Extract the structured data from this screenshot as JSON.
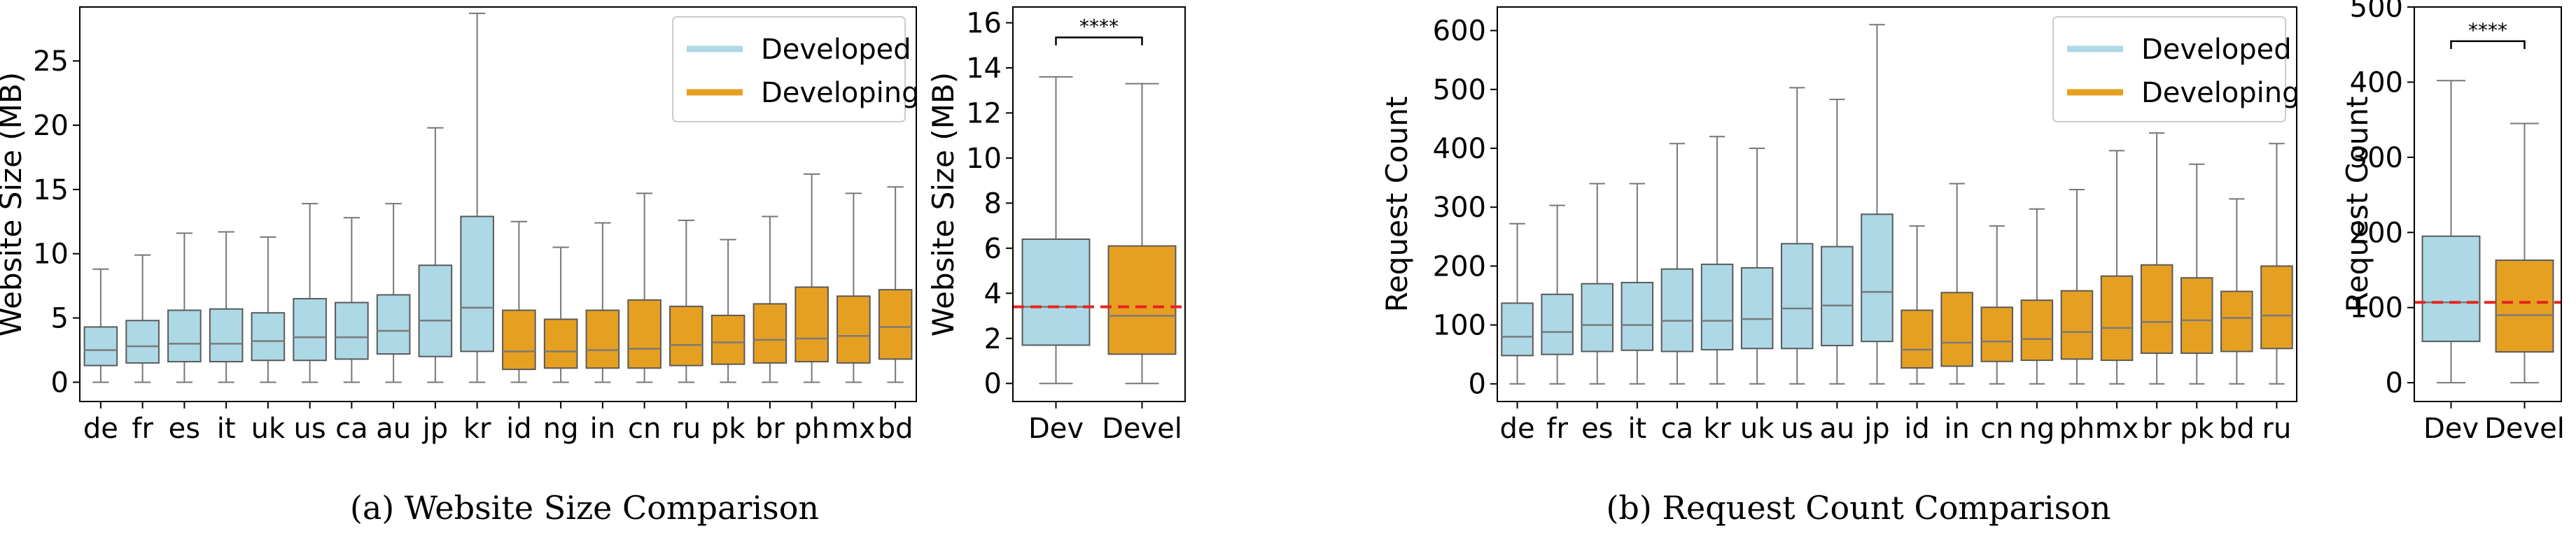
{
  "colors": {
    "developed": "#ADD8E6",
    "developing": "#E6A021",
    "median_line": "#7a7a7a",
    "whisker": "#777777",
    "ref_line": "#E8231E"
  },
  "subfigures": [
    {
      "caption": "(a)  Website Size Comparison"
    },
    {
      "caption": "(b)  Request Count Comparison"
    }
  ],
  "chart_data": [
    {
      "id": "size-country",
      "type": "box",
      "ylabel": "Website Size (MB)",
      "ylim": [
        -1.5,
        29.2
      ],
      "yticks": [
        0,
        5,
        10,
        15,
        20,
        25
      ],
      "legend": {
        "placement": "top-right",
        "entries": [
          {
            "name": "Developed",
            "group": "developed"
          },
          {
            "name": "Developing",
            "group": "developing"
          }
        ]
      },
      "boxes": [
        {
          "label": "de",
          "group": "developed",
          "min": 0,
          "q1": 1.3,
          "median": 2.5,
          "q3": 4.3,
          "max": 8.8
        },
        {
          "label": "fr",
          "group": "developed",
          "min": 0,
          "q1": 1.5,
          "median": 2.8,
          "q3": 4.8,
          "max": 9.9
        },
        {
          "label": "es",
          "group": "developed",
          "min": 0,
          "q1": 1.6,
          "median": 3.0,
          "q3": 5.6,
          "max": 11.6
        },
        {
          "label": "it",
          "group": "developed",
          "min": 0,
          "q1": 1.6,
          "median": 3.0,
          "q3": 5.7,
          "max": 11.7
        },
        {
          "label": "uk",
          "group": "developed",
          "min": 0,
          "q1": 1.7,
          "median": 3.2,
          "q3": 5.4,
          "max": 11.3
        },
        {
          "label": "us",
          "group": "developed",
          "min": 0,
          "q1": 1.7,
          "median": 3.5,
          "q3": 6.5,
          "max": 13.9
        },
        {
          "label": "ca",
          "group": "developed",
          "min": 0,
          "q1": 1.8,
          "median": 3.5,
          "q3": 6.2,
          "max": 12.8
        },
        {
          "label": "au",
          "group": "developed",
          "min": 0,
          "q1": 2.2,
          "median": 4.0,
          "q3": 6.8,
          "max": 13.9
        },
        {
          "label": "jp",
          "group": "developed",
          "min": 0,
          "q1": 2.0,
          "median": 4.8,
          "q3": 9.1,
          "max": 19.8
        },
        {
          "label": "kr",
          "group": "developed",
          "min": 0,
          "q1": 2.4,
          "median": 5.8,
          "q3": 12.9,
          "max": 28.7
        },
        {
          "label": "id",
          "group": "developing",
          "min": 0,
          "q1": 1.0,
          "median": 2.4,
          "q3": 5.6,
          "max": 12.5
        },
        {
          "label": "ng",
          "group": "developing",
          "min": 0,
          "q1": 1.1,
          "median": 2.4,
          "q3": 4.9,
          "max": 10.5
        },
        {
          "label": "in",
          "group": "developing",
          "min": 0,
          "q1": 1.1,
          "median": 2.5,
          "q3": 5.6,
          "max": 12.4
        },
        {
          "label": "cn",
          "group": "developing",
          "min": 0,
          "q1": 1.1,
          "median": 2.6,
          "q3": 6.4,
          "max": 14.7
        },
        {
          "label": "ru",
          "group": "developing",
          "min": 0,
          "q1": 1.3,
          "median": 2.9,
          "q3": 5.9,
          "max": 12.6
        },
        {
          "label": "pk",
          "group": "developing",
          "min": 0,
          "q1": 1.4,
          "median": 3.1,
          "q3": 5.2,
          "max": 11.1
        },
        {
          "label": "br",
          "group": "developing",
          "min": 0,
          "q1": 1.5,
          "median": 3.3,
          "q3": 6.1,
          "max": 12.9
        },
        {
          "label": "ph",
          "group": "developing",
          "min": 0,
          "q1": 1.6,
          "median": 3.4,
          "q3": 7.4,
          "max": 16.2
        },
        {
          "label": "mx",
          "group": "developing",
          "min": 0,
          "q1": 1.5,
          "median": 3.6,
          "q3": 6.7,
          "max": 14.7
        },
        {
          "label": "bd",
          "group": "developing",
          "min": 0,
          "q1": 1.8,
          "median": 4.3,
          "q3": 7.2,
          "max": 15.2
        }
      ]
    },
    {
      "id": "size-group",
      "type": "box",
      "ylabel": "Website Size (MB)",
      "ylim": [
        -0.8,
        16.7
      ],
      "yticks": [
        0,
        2,
        4,
        6,
        8,
        10,
        12,
        14,
        16
      ],
      "reference_line": 3.4,
      "significance": "****",
      "boxes": [
        {
          "label": "Dev",
          "group": "developed",
          "min": 0,
          "q1": 1.7,
          "median": 3.4,
          "q3": 6.4,
          "max": 13.6
        },
        {
          "label": "Devel",
          "group": "developing",
          "min": 0,
          "q1": 1.3,
          "median": 3.0,
          "q3": 6.1,
          "max": 13.3
        }
      ]
    },
    {
      "id": "requests-country",
      "type": "box",
      "ylabel": "Request Count",
      "ylim": [
        -30,
        640
      ],
      "yticks": [
        0,
        100,
        200,
        300,
        400,
        500,
        600
      ],
      "legend": {
        "placement": "top-right",
        "entries": [
          {
            "name": "Developed",
            "group": "developed"
          },
          {
            "name": "Developing",
            "group": "developing"
          }
        ]
      },
      "boxes": [
        {
          "label": "de",
          "group": "developed",
          "min": 0,
          "q1": 48,
          "median": 80,
          "q3": 137,
          "max": 272
        },
        {
          "label": "fr",
          "group": "developed",
          "min": 0,
          "q1": 50,
          "median": 88,
          "q3": 152,
          "max": 303
        },
        {
          "label": "es",
          "group": "developed",
          "min": 0,
          "q1": 55,
          "median": 100,
          "q3": 170,
          "max": 340
        },
        {
          "label": "it",
          "group": "developed",
          "min": 0,
          "q1": 57,
          "median": 100,
          "q3": 172,
          "max": 340
        },
        {
          "label": "ca",
          "group": "developed",
          "min": 0,
          "q1": 55,
          "median": 107,
          "q3": 195,
          "max": 408
        },
        {
          "label": "kr",
          "group": "developed",
          "min": 0,
          "q1": 58,
          "median": 107,
          "q3": 203,
          "max": 420
        },
        {
          "label": "uk",
          "group": "developed",
          "min": 0,
          "q1": 60,
          "median": 110,
          "q3": 197,
          "max": 400
        },
        {
          "label": "us",
          "group": "developed",
          "min": 0,
          "q1": 60,
          "median": 128,
          "q3": 238,
          "max": 503
        },
        {
          "label": "au",
          "group": "developed",
          "min": 0,
          "q1": 65,
          "median": 133,
          "q3": 233,
          "max": 483
        },
        {
          "label": "jp",
          "group": "developed",
          "min": 0,
          "q1": 72,
          "median": 156,
          "q3": 288,
          "max": 610
        },
        {
          "label": "id",
          "group": "developing",
          "min": 0,
          "q1": 27,
          "median": 58,
          "q3": 125,
          "max": 268
        },
        {
          "label": "in",
          "group": "developing",
          "min": 0,
          "q1": 30,
          "median": 70,
          "q3": 155,
          "max": 340
        },
        {
          "label": "cn",
          "group": "developing",
          "min": 0,
          "q1": 38,
          "median": 72,
          "q3": 130,
          "max": 268
        },
        {
          "label": "ng",
          "group": "developing",
          "min": 0,
          "q1": 40,
          "median": 76,
          "q3": 142,
          "max": 297
        },
        {
          "label": "ph",
          "group": "developing",
          "min": 0,
          "q1": 42,
          "median": 88,
          "q3": 158,
          "max": 330
        },
        {
          "label": "mx",
          "group": "developing",
          "min": 0,
          "q1": 40,
          "median": 95,
          "q3": 183,
          "max": 396
        },
        {
          "label": "br",
          "group": "developing",
          "min": 0,
          "q1": 52,
          "median": 105,
          "q3": 202,
          "max": 426
        },
        {
          "label": "pk",
          "group": "developing",
          "min": 0,
          "q1": 52,
          "median": 108,
          "q3": 180,
          "max": 373
        },
        {
          "label": "bd",
          "group": "developing",
          "min": 0,
          "q1": 55,
          "median": 112,
          "q3": 157,
          "max": 314
        },
        {
          "label": "ru",
          "group": "developing",
          "min": 0,
          "q1": 60,
          "median": 116,
          "q3": 200,
          "max": 408
        }
      ]
    },
    {
      "id": "requests-group",
      "type": "box",
      "ylabel": "Request Count",
      "ylim": [
        -25,
        500
      ],
      "yticks": [
        0,
        100,
        200,
        300,
        400,
        500
      ],
      "reference_line": 107,
      "significance": "****",
      "boxes": [
        {
          "label": "Dev",
          "group": "developed",
          "min": 0,
          "q1": 55,
          "median": 107,
          "q3": 195,
          "max": 402
        },
        {
          "label": "Devel",
          "group": "developing",
          "min": 0,
          "q1": 41,
          "median": 90,
          "q3": 163,
          "max": 345
        }
      ]
    }
  ]
}
